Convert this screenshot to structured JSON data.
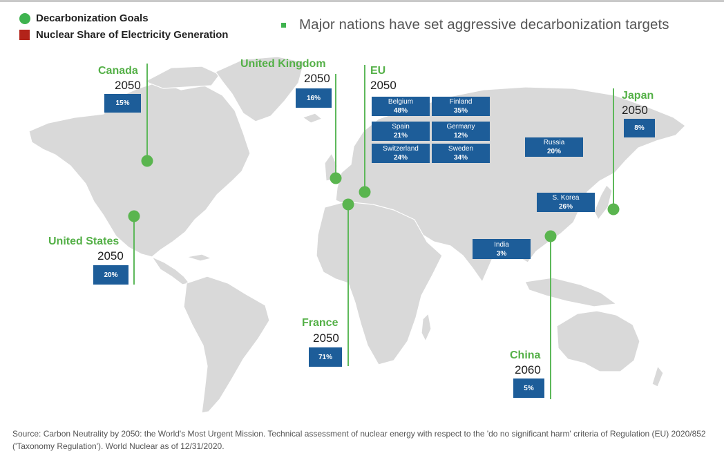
{
  "legend": {
    "goals_label": "Decarbonization Goals",
    "nuclear_label": "Nuclear Share of Electricity Generation"
  },
  "headline": "Major nations have set aggressive decarbonization targets",
  "colors": {
    "goal_green": "#3fb34f",
    "label_green": "#54b047",
    "box_blue": "#1d5d99",
    "land": "#d9d9d9",
    "nuclear_red": "#b3231a"
  },
  "countries": {
    "canada": {
      "name": "Canada",
      "year": "2050",
      "share": "15%"
    },
    "united_kingdom": {
      "name": "United Kingdom",
      "year": "2050",
      "share": "16%"
    },
    "eu": {
      "name": "EU",
      "year": "2050"
    },
    "japan": {
      "name": "Japan",
      "year": "2050",
      "share": "8%"
    },
    "united_states": {
      "name": "United States",
      "year": "2050",
      "share": "20%"
    },
    "france": {
      "name": "France",
      "year": "2050",
      "share": "71%"
    },
    "china": {
      "name": "China",
      "year": "2060",
      "share": "5%"
    }
  },
  "eu_members": [
    {
      "name": "Belgium",
      "share": "48%"
    },
    {
      "name": "Finland",
      "share": "35%"
    },
    {
      "name": "Spain",
      "share": "21%"
    },
    {
      "name": "Germany",
      "share": "12%"
    },
    {
      "name": "Switzerland",
      "share": "24%"
    },
    {
      "name": "Sweden",
      "share": "34%"
    }
  ],
  "other": {
    "russia": {
      "name": "Russia",
      "share": "20%"
    },
    "south_korea": {
      "name": "S. Korea",
      "share": "26%"
    },
    "india": {
      "name": "India",
      "share": "3%"
    }
  },
  "source": "Source: Carbon Neutrality by 2050: the World's Most Urgent Mission. Technical assessment of nuclear energy with respect to the 'do no significant harm' criteria of Regulation (EU) 2020/852 ('Taxonomy Regulation'). World Nuclear as of 12/31/2020."
}
